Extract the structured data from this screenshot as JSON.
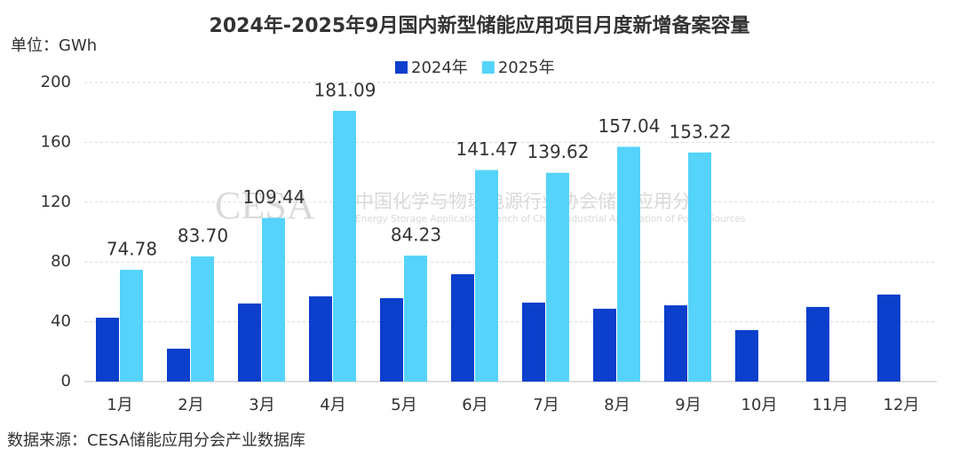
{
  "chart_data": {
    "type": "bar",
    "title": "2024年-2025年9月国内新型储能应用项目月度新增备案容量",
    "y_axis_label": "单位：GWh",
    "source": "数据来源：CESA储能应用分会产业数据库",
    "watermark": {
      "logo": "CESA",
      "name": "中国化学与物理电源行业协会储能应用分会",
      "english": "Energy Storage Application Branch of China Industrial Association of Power Sources"
    },
    "categories": [
      "1月",
      "2月",
      "3月",
      "4月",
      "5月",
      "6月",
      "7月",
      "8月",
      "9月",
      "10月",
      "11月",
      "12月"
    ],
    "series": [
      {
        "name": "2024年",
        "color": "#0b3fcc",
        "values": [
          42.7,
          22.0,
          52.2,
          57.0,
          55.8,
          71.8,
          52.8,
          48.7,
          51.0,
          34.4,
          49.9,
          58.2
        ]
      },
      {
        "name": "2025年",
        "color": "#55d3fb",
        "values": [
          74.78,
          83.7,
          109.44,
          181.09,
          84.23,
          141.47,
          139.62,
          157.04,
          153.22,
          null,
          null,
          null
        ],
        "value_labels": [
          "74.78",
          "83.70",
          "109.44",
          "181.09",
          "84.23",
          "141.47",
          "139.62",
          "157.04",
          "153.22",
          null,
          null,
          null
        ]
      }
    ],
    "ylim": [
      0,
      200
    ],
    "yticks": [
      0,
      40,
      80,
      120,
      160,
      200
    ],
    "grid": true,
    "legend": "top"
  }
}
